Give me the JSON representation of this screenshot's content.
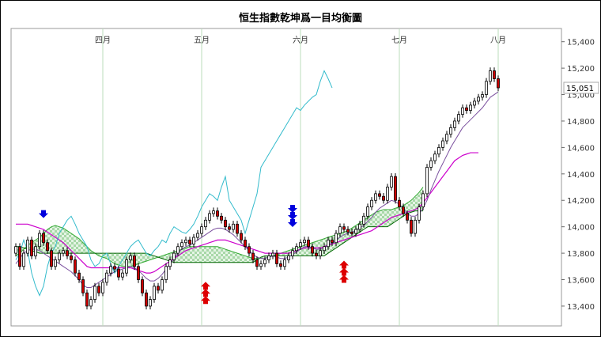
{
  "chart_data": {
    "type": "candlestick",
    "title": "恒生指數乾坤爲一目均衡圖",
    "ylim": [
      13250,
      15500
    ],
    "yticks": [
      13400,
      13600,
      13800,
      14000,
      14200,
      14400,
      14600,
      14800,
      15000,
      15200,
      15400
    ],
    "ytick_labels": [
      "13,400",
      "13,600",
      "13,800",
      "14,000",
      "14,200",
      "14,400",
      "14,600",
      "14,800",
      "15,000",
      "15,200",
      "15,400"
    ],
    "months": [
      {
        "label": "四月",
        "index": 22
      },
      {
        "label": "五月",
        "index": 47
      },
      {
        "label": "六月",
        "index": 72
      },
      {
        "label": "七月",
        "index": 97
      },
      {
        "label": "八月",
        "index": 122
      }
    ],
    "last_price_label": "15,051",
    "last_price": 15051,
    "colors": {
      "up": "#ffffff",
      "down": "#cc0000",
      "wick": "#000000",
      "tenkan": "#7a4f9e",
      "kijun": "#cc00cc",
      "chikou": "#33bbcc",
      "span_a": "#33aa33",
      "span_b": "#006600",
      "cloud": "#a8d8a8",
      "buy_arrow": "#dd0000",
      "sell_arrow": "#0000dd",
      "month_line": "#bbddbb"
    },
    "candles_close": [
      13850,
      13700,
      13800,
      13900,
      13780,
      13850,
      13950,
      13880,
      13820,
      13700,
      13750,
      13800,
      13820,
      13780,
      13750,
      13650,
      13600,
      13500,
      13400,
      13450,
      13550,
      13500,
      13580,
      13650,
      13700,
      13680,
      13620,
      13650,
      13750,
      13780,
      13700,
      13600,
      13500,
      13400,
      13450,
      13550,
      13520,
      13600,
      13700,
      13750,
      13800,
      13850,
      13880,
      13900,
      13870,
      13920,
      13950,
      14000,
      14050,
      14100,
      14120,
      14080,
      14050,
      14000,
      13980,
      14020,
      13950,
      13900,
      13850,
      13800,
      13750,
      13700,
      13720,
      13750,
      13780,
      13800,
      13720,
      13700,
      13750,
      13780,
      13820,
      13850,
      13880,
      13900,
      13850,
      13800,
      13780,
      13820,
      13850,
      13900,
      13880,
      13950,
      14000,
      13980,
      13960,
      13950,
      13980,
      14020,
      14080,
      14150,
      14200,
      14250,
      14230,
      14200,
      14300,
      14380,
      14200,
      14150,
      14100,
      14050,
      13950,
      14050,
      14150,
      14250,
      14450,
      14500,
      14550,
      14600,
      14650,
      14700,
      14750,
      14800,
      14850,
      14900,
      14880,
      14920,
      14950,
      14980,
      15000,
      15100,
      15180,
      15120,
      15051
    ],
    "candles_open": [
      13800,
      13850,
      13700,
      13800,
      13900,
      13780,
      13850,
      13950,
      13880,
      13820,
      13700,
      13750,
      13800,
      13820,
      13780,
      13750,
      13650,
      13600,
      13500,
      13400,
      13450,
      13550,
      13500,
      13580,
      13650,
      13700,
      13680,
      13620,
      13650,
      13750,
      13780,
      13700,
      13600,
      13500,
      13400,
      13450,
      13550,
      13520,
      13600,
      13700,
      13750,
      13800,
      13850,
      13880,
      13900,
      13870,
      13920,
      13950,
      14000,
      14050,
      14100,
      14120,
      14080,
      14050,
      14000,
      13980,
      14020,
      13950,
      13900,
      13850,
      13800,
      13750,
      13700,
      13720,
      13750,
      13780,
      13800,
      13720,
      13700,
      13750,
      13780,
      13820,
      13850,
      13880,
      13900,
      13850,
      13800,
      13780,
      13820,
      13850,
      13900,
      13880,
      13950,
      14000,
      13980,
      13960,
      13950,
      13980,
      14020,
      14080,
      14150,
      14200,
      14250,
      14230,
      14200,
      14300,
      14380,
      14200,
      14150,
      14100,
      14050,
      13950,
      14050,
      14150,
      14250,
      14450,
      14500,
      14550,
      14600,
      14650,
      14700,
      14750,
      14800,
      14850,
      14900,
      14880,
      14920,
      14950,
      14980,
      15000,
      15100,
      15180,
      15120
    ],
    "tenkan_sen": [
      13720,
      13760,
      13800,
      13820,
      13830,
      13830,
      13820,
      13800,
      13780,
      13760,
      13740,
      13720,
      13700,
      13680,
      13660,
      13630,
      13600,
      13560,
      13540,
      13540,
      13560,
      13580,
      13600,
      13620,
      13640,
      13660,
      13670,
      13680,
      13690,
      13700,
      13690,
      13670,
      13640,
      13610,
      13590,
      13590,
      13610,
      13640,
      13680,
      13720,
      13760,
      13800,
      13830,
      13850,
      13860,
      13880,
      13900,
      13920,
      13940,
      13960,
      13980,
      13990,
      13990,
      13980,
      13960,
      13940,
      13910,
      13880,
      13850,
      13820,
      13790,
      13770,
      13760,
      13760,
      13770,
      13780,
      13770,
      13760,
      13760,
      13770,
      13790,
      13810,
      13830,
      13850,
      13850,
      13840,
      13830,
      13830,
      13840,
      13860,
      13880,
      13900,
      13920,
      13940,
      13950,
      13960,
      13970,
      13990,
      14010,
      14040,
      14070,
      14110,
      14140,
      14160,
      14180,
      14200,
      14190,
      14170,
      14140,
      14100,
      14080,
      14080,
      14100,
      14140,
      14200,
      14280,
      14350,
      14420,
      14480,
      14540,
      14600,
      14650,
      14700,
      14750,
      14780,
      14810,
      14840,
      14870,
      14900,
      14940,
      14980,
      15000,
      15020
    ],
    "kijun_sen": [
      14020,
      14020,
      14020,
      14020,
      14010,
      14000,
      13990,
      13980,
      13960,
      13940,
      13920,
      13900,
      13880,
      13850,
      13820,
      13790,
      13760,
      13730,
      13700,
      13690,
      13690,
      13690,
      13690,
      13690,
      13690,
      13690,
      13690,
      13690,
      13690,
      13690,
      13680,
      13670,
      13660,
      13650,
      13650,
      13660,
      13680,
      13700,
      13720,
      13740,
      13760,
      13780,
      13800,
      13820,
      13830,
      13840,
      13850,
      13860,
      13870,
      13880,
      13890,
      13900,
      13900,
      13900,
      13890,
      13880,
      13870,
      13860,
      13850,
      13840,
      13830,
      13820,
      13810,
      13800,
      13800,
      13800,
      13800,
      13800,
      13800,
      13800,
      13810,
      13820,
      13830,
      13840,
      13840,
      13840,
      13840,
      13840,
      13850,
      13860,
      13870,
      13880,
      13890,
      13900,
      13910,
      13920,
      13930,
      13940,
      13950,
      13960,
      13970,
      13990,
      14010,
      14030,
      14050,
      14070,
      14080,
      14090,
      14100,
      14110,
      14120,
      14130,
      14150,
      14180,
      14220,
      14260,
      14300,
      14340,
      14380,
      14420,
      14460,
      14500,
      14520,
      14540,
      14550,
      14560,
      14560,
      14560
    ],
    "chikou_span": [
      13750,
      13800,
      13900,
      13820,
      13650,
      13550,
      13480,
      13550,
      13700,
      13800,
      13850,
      13950,
      14000,
      14050,
      14080,
      14020,
      13950,
      13900,
      13850,
      13750,
      13700,
      13720,
      13780,
      13800,
      13720,
      13650,
      13700,
      13750,
      13800,
      13850,
      13880,
      13900,
      13850,
      13800,
      13780,
      13820,
      13850,
      13900,
      13880,
      13950,
      14000,
      13980,
      13960,
      13950,
      13980,
      14020,
      14080,
      14150,
      14200,
      14250,
      14230,
      14200,
      14300,
      14380,
      14200,
      14150,
      14100,
      14050,
      13950,
      14050,
      14150,
      14250,
      14450,
      14500,
      14550,
      14600,
      14650,
      14700,
      14750,
      14800,
      14850,
      14900,
      14880,
      14920,
      14950,
      14980,
      15000,
      15100,
      15180,
      15120,
      15051
    ],
    "senkou_span_a": [
      13780,
      13800,
      13830,
      13860,
      13880,
      13900,
      13920,
      13950,
      13980,
      14000,
      14010,
      14000,
      13990,
      13970,
      13950,
      13930,
      13910,
      13880,
      13850,
      13820,
      13800,
      13780,
      13770,
      13760,
      13740,
      13720,
      13710,
      13700,
      13700,
      13700,
      13710,
      13720,
      13730,
      13740,
      13750,
      13760,
      13770,
      13780,
      13790,
      13800,
      13810,
      13820,
      13830,
      13840,
      13850,
      13850,
      13850,
      13850,
      13850,
      13850,
      13850,
      13850,
      13840,
      13830,
      13820,
      13810,
      13800,
      13790,
      13780,
      13770,
      13760,
      13760,
      13760,
      13760,
      13770,
      13780,
      13790,
      13800,
      13810,
      13820,
      13830,
      13840,
      13850,
      13860,
      13870,
      13880,
      13890,
      13900,
      13910,
      13920,
      13930,
      13940,
      13950,
      13960,
      13970,
      13990,
      14010,
      14030,
      14050,
      14070,
      14090,
      14110,
      14120,
      14130,
      14130,
      14130,
      14140,
      14150,
      14160,
      14180,
      14200,
      14230,
      14260,
      14300
    ],
    "senkou_span_b": [
      13850,
      13850,
      13840,
      13830,
      13820,
      13810,
      13800,
      13800,
      13800,
      13800,
      13800,
      13800,
      13800,
      13800,
      13800,
      13800,
      13800,
      13800,
      13800,
      13800,
      13800,
      13800,
      13800,
      13800,
      13800,
      13800,
      13800,
      13800,
      13800,
      13800,
      13800,
      13800,
      13800,
      13800,
      13790,
      13780,
      13770,
      13760,
      13750,
      13740,
      13730,
      13730,
      13730,
      13730,
      13730,
      13730,
      13730,
      13730,
      13730,
      13730,
      13730,
      13730,
      13730,
      13730,
      13730,
      13730,
      13730,
      13730,
      13730,
      13730,
      13730,
      13750,
      13770,
      13780,
      13780,
      13780,
      13780,
      13780,
      13780,
      13780,
      13780,
      13780,
      13780,
      13780,
      13780,
      13780,
      13780,
      13780,
      13780,
      13800,
      13820,
      13840,
      13860,
      13880,
      13900,
      13920,
      13940,
      13960,
      13980,
      14000,
      14000,
      14000,
      14000,
      14000,
      14000,
      14020,
      14040,
      14060,
      14080,
      14100,
      14110,
      14120,
      14120,
      14120
    ],
    "sell_signals": [
      {
        "index": 7,
        "price": 14090
      },
      {
        "index": 70,
        "price": 14130
      }
    ],
    "buy_signals": [
      {
        "index": 48,
        "price": 13560
      },
      {
        "index": 83,
        "price": 13720
      }
    ]
  }
}
